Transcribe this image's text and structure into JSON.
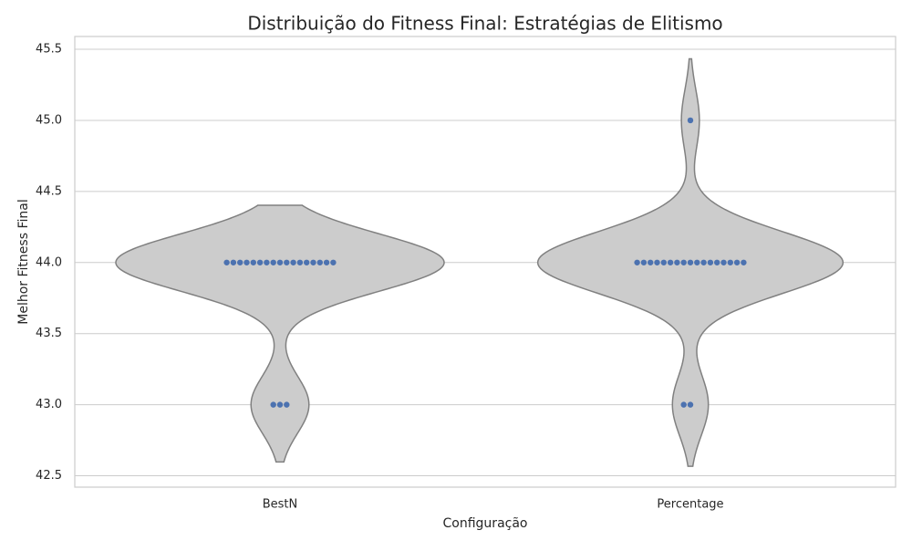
{
  "chart_data": {
    "type": "violin",
    "title": "Distribuição do Fitness Final: Estratégias de Elitismo",
    "x_label": "Configuração",
    "y_label": "Melhor Fitness Final",
    "categories": [
      "BestN",
      "Percentage"
    ],
    "series": [
      {
        "values": [
          44,
          44,
          44,
          44,
          44,
          44,
          44,
          44,
          44,
          44,
          44,
          44,
          44,
          44,
          44,
          44,
          44,
          43,
          43,
          43
        ]
      },
      {
        "values": [
          44,
          44,
          44,
          44,
          44,
          44,
          44,
          44,
          44,
          44,
          44,
          44,
          44,
          44,
          44,
          44,
          44,
          43,
          43,
          45
        ]
      }
    ],
    "violin_color": "#cccccc",
    "violin_edge": "#808080",
    "point_color": "#4c72b0",
    "ylim": [
      42.42,
      45.59
    ],
    "yticks": [
      42.5,
      {
        "value": 43,
        "label": "43.0"
      },
      43.5,
      {
        "value": 44,
        "label": "44.0"
      },
      44.5,
      {
        "value": 45,
        "label": "45.0"
      },
      45.5
    ],
    "grid": true
  }
}
